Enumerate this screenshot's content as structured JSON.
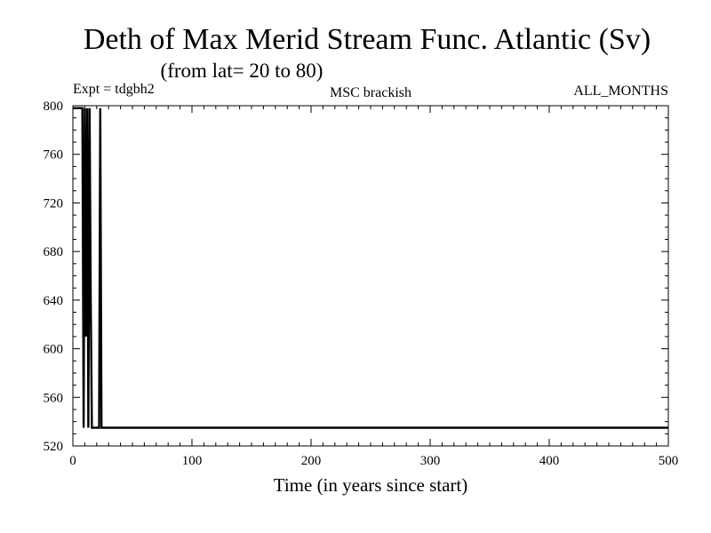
{
  "chart_data": {
    "type": "line",
    "title": "Deth of Max Merid Stream Func. Atlantic (Sv)",
    "subtitle": "(from lat= 20 to 80)",
    "header_left": "Expt = tdgbh2",
    "header_center": "MSC brackish",
    "header_right": "ALL_MONTHS",
    "xlabel": "Time (in years since start)",
    "ylabel": "",
    "xlim": [
      0,
      500
    ],
    "ylim": [
      520,
      800
    ],
    "xticks": [
      0,
      100,
      200,
      300,
      400,
      500
    ],
    "yticks": [
      520,
      560,
      600,
      640,
      680,
      720,
      760,
      800
    ],
    "grid": false,
    "series": [
      {
        "x": [
          0,
          8,
          9,
          10,
          11,
          12,
          13,
          14,
          15,
          16,
          17,
          18,
          19,
          20,
          21,
          22,
          23,
          24,
          25,
          30,
          100,
          200,
          300,
          400,
          500
        ],
        "y": [
          798,
          798,
          535,
          798,
          610,
          798,
          535,
          798,
          640,
          535,
          535,
          535,
          535,
          535,
          535,
          535,
          798,
          535,
          535,
          535,
          535,
          535,
          535,
          535,
          535
        ]
      }
    ]
  }
}
